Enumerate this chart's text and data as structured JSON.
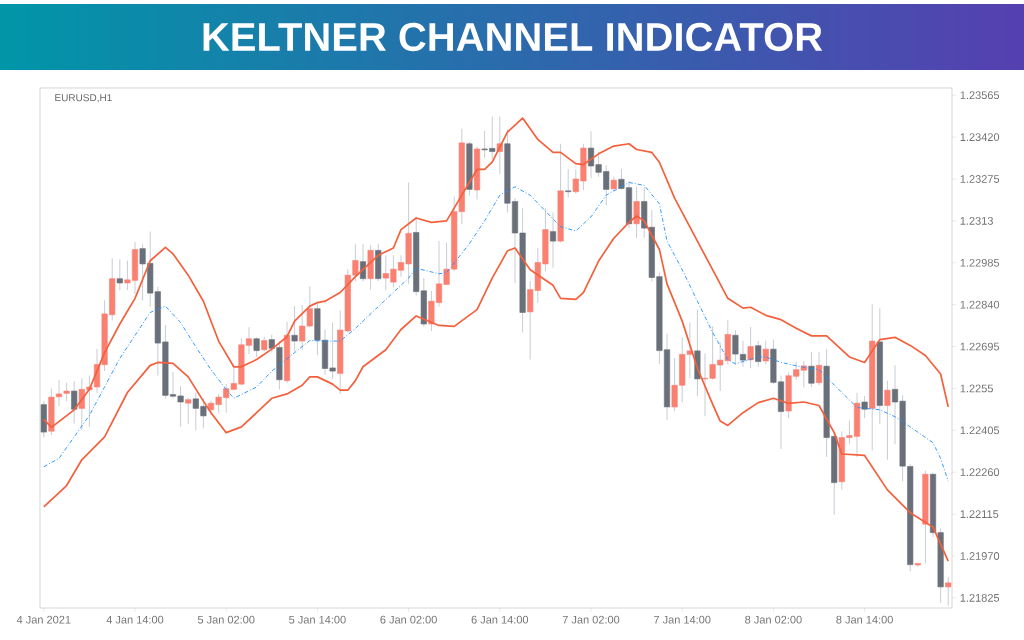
{
  "chart_data": {
    "type": "candlestick",
    "title": "KELTNER CHANNEL INDICATOR",
    "subtitle": "EURUSD,H1",
    "xlim": [
      "2021-01-04T01:30",
      "2021-01-09T01:30"
    ],
    "ylim": [
      1.2179,
      1.2359
    ],
    "xticks": [
      {
        "value": "2021-01-04T02:00",
        "label": "4 Jan 2021"
      },
      {
        "value": "2021-01-04T14:00",
        "label": "4 Jan 14:00"
      },
      {
        "value": "2021-01-05T02:00",
        "label": "5 Jan 02:00"
      },
      {
        "value": "2021-01-05T14:00",
        "label": "5 Jan 14:00"
      },
      {
        "value": "2021-01-06T02:00",
        "label": "6 Jan 02:00"
      },
      {
        "value": "2021-01-06T14:00",
        "label": "6 Jan 14:00"
      },
      {
        "value": "2021-01-07T02:00",
        "label": "7 Jan 02:00"
      },
      {
        "value": "2021-01-07T14:00",
        "label": "7 Jan 14:00"
      },
      {
        "value": "2021-01-08T02:00",
        "label": "8 Jan 02:00"
      },
      {
        "value": "2021-01-08T14:00",
        "label": "8 Jan 14:00"
      }
    ],
    "yticks": [
      1.21825,
      {
        "value": 1.2197,
        "label": "1.21970"
      },
      1.22115,
      {
        "value": 1.2226,
        "label": "1.22260"
      },
      1.22405,
      1.2255,
      1.22695,
      {
        "value": 1.2284,
        "label": "1.22840"
      },
      1.22985,
      1.2313,
      1.23275,
      {
        "value": 1.2342,
        "label": "1.23420"
      },
      1.23565
    ],
    "x": [
      "2021-01-04T02:00",
      "2021-01-04T03:00",
      "2021-01-04T04:00",
      "2021-01-04T05:00",
      "2021-01-04T06:00",
      "2021-01-04T07:00",
      "2021-01-04T08:00",
      "2021-01-04T09:00",
      "2021-01-04T10:00",
      "2021-01-04T11:00",
      "2021-01-04T12:00",
      "2021-01-04T13:00",
      "2021-01-04T14:00",
      "2021-01-04T15:00",
      "2021-01-04T16:00",
      "2021-01-04T17:00",
      "2021-01-04T18:00",
      "2021-01-04T19:00",
      "2021-01-04T20:00",
      "2021-01-04T21:00",
      "2021-01-04T22:00",
      "2021-01-04T23:00",
      "2021-01-05T00:00",
      "2021-01-05T01:00",
      "2021-01-05T02:00",
      "2021-01-05T03:00",
      "2021-01-05T04:00",
      "2021-01-05T05:00",
      "2021-01-05T06:00",
      "2021-01-05T07:00",
      "2021-01-05T08:00",
      "2021-01-05T09:00",
      "2021-01-05T10:00",
      "2021-01-05T11:00",
      "2021-01-05T12:00",
      "2021-01-05T13:00",
      "2021-01-05T14:00",
      "2021-01-05T15:00",
      "2021-01-05T16:00",
      "2021-01-05T17:00",
      "2021-01-05T18:00",
      "2021-01-05T19:00",
      "2021-01-05T20:00",
      "2021-01-05T21:00",
      "2021-01-05T22:00",
      "2021-01-05T23:00",
      "2021-01-06T00:00",
      "2021-01-06T01:00",
      "2021-01-06T02:00",
      "2021-01-06T03:00",
      "2021-01-06T04:00",
      "2021-01-06T05:00",
      "2021-01-06T06:00",
      "2021-01-06T07:00",
      "2021-01-06T08:00",
      "2021-01-06T09:00",
      "2021-01-06T10:00",
      "2021-01-06T11:00",
      "2021-01-06T12:00",
      "2021-01-06T13:00",
      "2021-01-06T14:00",
      "2021-01-06T15:00",
      "2021-01-06T16:00",
      "2021-01-06T17:00",
      "2021-01-06T18:00",
      "2021-01-06T19:00",
      "2021-01-06T20:00",
      "2021-01-06T21:00",
      "2021-01-06T22:00",
      "2021-01-06T23:00",
      "2021-01-07T00:00",
      "2021-01-07T01:00",
      "2021-01-07T02:00",
      "2021-01-07T03:00",
      "2021-01-07T04:00",
      "2021-01-07T05:00",
      "2021-01-07T06:00",
      "2021-01-07T07:00",
      "2021-01-07T08:00",
      "2021-01-07T09:00",
      "2021-01-07T10:00",
      "2021-01-07T11:00",
      "2021-01-07T12:00",
      "2021-01-07T13:00",
      "2021-01-07T14:00",
      "2021-01-07T15:00",
      "2021-01-07T16:00",
      "2021-01-07T17:00",
      "2021-01-07T18:00",
      "2021-01-07T19:00",
      "2021-01-07T20:00",
      "2021-01-07T21:00",
      "2021-01-07T22:00",
      "2021-01-07T23:00",
      "2021-01-08T00:00",
      "2021-01-08T01:00",
      "2021-01-08T02:00",
      "2021-01-08T03:00",
      "2021-01-08T04:00",
      "2021-01-08T05:00",
      "2021-01-08T06:00",
      "2021-01-08T07:00",
      "2021-01-08T08:00",
      "2021-01-08T09:00",
      "2021-01-08T10:00",
      "2021-01-08T11:00",
      "2021-01-08T12:00",
      "2021-01-08T13:00",
      "2021-01-08T14:00",
      "2021-01-08T15:00",
      "2021-01-08T16:00",
      "2021-01-08T17:00",
      "2021-01-08T18:00",
      "2021-01-08T19:00",
      "2021-01-08T20:00",
      "2021-01-08T21:00",
      "2021-01-08T22:00",
      "2021-01-08T23:00",
      "2021-01-09T00:00",
      "2021-01-09T01:00"
    ],
    "ohlc": [
      [
        1.22494,
        1.22506,
        1.2238,
        1.22399
      ],
      [
        1.22402,
        1.2255,
        1.22389,
        1.2252
      ],
      [
        1.22521,
        1.22578,
        1.22488,
        1.22531
      ],
      [
        1.22533,
        1.2257,
        1.22506,
        1.22541
      ],
      [
        1.22541,
        1.22575,
        1.22429,
        1.22478
      ],
      [
        1.22481,
        1.22585,
        1.22407,
        1.22547
      ],
      [
        1.22545,
        1.22595,
        1.22417,
        1.22555
      ],
      [
        1.22555,
        1.22687,
        1.22534,
        1.22633
      ],
      [
        1.22632,
        1.22855,
        1.2261,
        1.22808
      ],
      [
        1.22805,
        1.23001,
        1.22785,
        1.2293
      ],
      [
        1.2293,
        1.22996,
        1.2289,
        1.22915
      ],
      [
        1.22915,
        1.22993,
        1.2289,
        1.22926
      ],
      [
        1.22924,
        1.23057,
        1.22877,
        1.23031
      ],
      [
        1.23034,
        1.23049,
        1.22855,
        1.22981
      ],
      [
        1.22983,
        1.23093,
        1.22833,
        1.2288
      ],
      [
        1.22885,
        1.22902,
        1.22595,
        1.22707
      ],
      [
        1.22711,
        1.2277,
        1.22516,
        1.22526
      ],
      [
        1.22529,
        1.22607,
        1.22516,
        1.22523
      ],
      [
        1.22524,
        1.22558,
        1.22417,
        1.22503
      ],
      [
        1.22499,
        1.22517,
        1.22427,
        1.22511
      ],
      [
        1.22514,
        1.22536,
        1.22405,
        1.22481
      ],
      [
        1.22488,
        1.22516,
        1.22412,
        1.22455
      ],
      [
        1.22476,
        1.22508,
        1.22457,
        1.22499
      ],
      [
        1.22494,
        1.22531,
        1.22466,
        1.2252
      ],
      [
        1.22518,
        1.22565,
        1.22466,
        1.22549
      ],
      [
        1.22547,
        1.22625,
        1.22544,
        1.22567
      ],
      [
        1.22565,
        1.22724,
        1.22561,
        1.22701
      ],
      [
        1.22699,
        1.22763,
        1.22669,
        1.22722
      ],
      [
        1.22722,
        1.22726,
        1.22659,
        1.22681
      ],
      [
        1.22684,
        1.22729,
        1.22679,
        1.22716
      ],
      [
        1.22719,
        1.22736,
        1.22674,
        1.22689
      ],
      [
        1.22692,
        1.22714,
        1.22546,
        1.2258
      ],
      [
        1.22577,
        1.22781,
        1.2257,
        1.22734
      ],
      [
        1.22734,
        1.22835,
        1.22679,
        1.22714
      ],
      [
        1.22714,
        1.22838,
        1.22684,
        1.22766
      ],
      [
        1.22766,
        1.22904,
        1.22761,
        1.22826
      ],
      [
        1.22826,
        1.22843,
        1.22665,
        1.22717
      ],
      [
        1.22717,
        1.22754,
        1.22597,
        1.22619
      ],
      [
        1.22621,
        1.22778,
        1.22583,
        1.2261
      ],
      [
        1.22602,
        1.2282,
        1.22531,
        1.22752
      ],
      [
        1.22749,
        1.22963,
        1.22744,
        1.22942
      ],
      [
        1.22942,
        1.23049,
        1.2292,
        1.22993
      ],
      [
        1.22989,
        1.23049,
        1.2292,
        1.2293
      ],
      [
        1.2293,
        1.23046,
        1.22892,
        1.23028
      ],
      [
        1.23028,
        1.23051,
        1.22922,
        1.2293
      ],
      [
        1.22932,
        1.23011,
        1.2289,
        1.22948
      ],
      [
        1.22918,
        1.23011,
        1.229,
        1.22963
      ],
      [
        1.22959,
        1.23011,
        1.22937,
        1.22986
      ],
      [
        1.22981,
        1.23263,
        1.22912,
        1.23087
      ],
      [
        1.2309,
        1.23144,
        1.22872,
        1.22885
      ],
      [
        1.22888,
        1.22932,
        1.22763,
        1.22773
      ],
      [
        1.22773,
        1.22887,
        1.22749,
        1.22852
      ],
      [
        1.22847,
        1.2306,
        1.22833,
        1.22912
      ],
      [
        1.2291,
        1.23055,
        1.22907,
        1.22963
      ],
      [
        1.22963,
        1.23214,
        1.22956,
        1.23162
      ],
      [
        1.23162,
        1.23449,
        1.23118,
        1.234
      ],
      [
        1.23397,
        1.23404,
        1.23217,
        1.23239
      ],
      [
        1.23237,
        1.23387,
        1.23204,
        1.23379
      ],
      [
        1.23379,
        1.23441,
        1.23348,
        1.23376
      ],
      [
        1.23381,
        1.23491,
        1.23343,
        1.2337
      ],
      [
        1.2337,
        1.23491,
        1.23293,
        1.23397
      ],
      [
        1.23397,
        1.23446,
        1.23159,
        1.23191
      ],
      [
        1.23197,
        1.23209,
        1.22914,
        1.23088
      ],
      [
        1.23088,
        1.23174,
        1.22744,
        1.22813
      ],
      [
        1.22815,
        1.22922,
        1.2265,
        1.22892
      ],
      [
        1.22889,
        1.23036,
        1.22847,
        1.22986
      ],
      [
        1.22981,
        1.23174,
        1.22956,
        1.231
      ],
      [
        1.23093,
        1.23159,
        1.22968,
        1.2306
      ],
      [
        1.2306,
        1.23397,
        1.23055,
        1.23234
      ],
      [
        1.23234,
        1.2331,
        1.23211,
        1.23231
      ],
      [
        1.23231,
        1.23308,
        1.23224,
        1.23275
      ],
      [
        1.23268,
        1.23397,
        1.23237,
        1.23382
      ],
      [
        1.23382,
        1.23441,
        1.23278,
        1.2332
      ],
      [
        1.23325,
        1.23369,
        1.23283,
        1.23298
      ],
      [
        1.23301,
        1.23323,
        1.23184,
        1.23239
      ],
      [
        1.23241,
        1.23283,
        1.23234,
        1.23271
      ],
      [
        1.23274,
        1.2331,
        1.23239,
        1.23242
      ],
      [
        1.23245,
        1.23268,
        1.23105,
        1.2312
      ],
      [
        1.2312,
        1.23248,
        1.2307,
        1.23197
      ],
      [
        1.23197,
        1.23247,
        1.23072,
        1.23105
      ],
      [
        1.23108,
        1.23167,
        1.2292,
        1.22934
      ],
      [
        1.22937,
        1.22951,
        1.22635,
        1.22681
      ],
      [
        1.22684,
        1.22739,
        1.22442,
        1.22486
      ],
      [
        1.22486,
        1.22656,
        1.22471,
        1.22561
      ],
      [
        1.22561,
        1.22727,
        1.22501,
        1.22668
      ],
      [
        1.22668,
        1.22778,
        1.22585,
        1.2268
      ],
      [
        1.2268,
        1.22823,
        1.22524,
        1.22583
      ],
      [
        1.22583,
        1.22672,
        1.22455,
        1.22585
      ],
      [
        1.22585,
        1.22765,
        1.2258,
        1.22633
      ],
      [
        1.22631,
        1.22709,
        1.22541,
        1.22648
      ],
      [
        1.22646,
        1.22786,
        1.22633,
        1.22737
      ],
      [
        1.22734,
        1.22752,
        1.22633,
        1.22669
      ],
      [
        1.22668,
        1.22714,
        1.22625,
        1.22648
      ],
      [
        1.22649,
        1.22763,
        1.2262,
        1.22695
      ],
      [
        1.22698,
        1.22714,
        1.22625,
        1.22643
      ],
      [
        1.22645,
        1.22716,
        1.22633,
        1.22686
      ],
      [
        1.22686,
        1.22719,
        1.22565,
        1.22571
      ],
      [
        1.22573,
        1.22595,
        1.2234,
        1.2247
      ],
      [
        1.22472,
        1.22605,
        1.22447,
        1.22594
      ],
      [
        1.22592,
        1.22642,
        1.2258,
        1.22615
      ],
      [
        1.22613,
        1.22645,
        1.22553,
        1.22628
      ],
      [
        1.22627,
        1.22677,
        1.22555,
        1.22568
      ],
      [
        1.2257,
        1.22677,
        1.22561,
        1.2263
      ],
      [
        1.22627,
        1.22686,
        1.22313,
        1.2238
      ],
      [
        1.22384,
        1.22398,
        1.22113,
        1.22224
      ],
      [
        1.22227,
        1.22402,
        1.22199,
        1.2238
      ],
      [
        1.2238,
        1.22439,
        1.22357,
        1.22387
      ],
      [
        1.22384,
        1.22534,
        1.22313,
        1.22499
      ],
      [
        1.22503,
        1.22524,
        1.22447,
        1.22478
      ],
      [
        1.22481,
        1.22841,
        1.22335,
        1.22714
      ],
      [
        1.22711,
        1.22828,
        1.22427,
        1.22491
      ],
      [
        1.22491,
        1.22577,
        1.22303,
        1.22544
      ],
      [
        1.22547,
        1.2263,
        1.22357,
        1.22503
      ],
      [
        1.22506,
        1.22526,
        1.22229,
        1.22281
      ],
      [
        1.2228,
        1.22288,
        1.21917,
        1.2194
      ],
      [
        1.21939,
        1.21947,
        1.21932,
        1.21944
      ],
      [
        1.2208,
        1.22265,
        1.21944,
        1.22253
      ],
      [
        1.22253,
        1.22258,
        1.22036,
        1.22051
      ],
      [
        1.22051,
        1.22066,
        1.21808,
        1.21863
      ],
      [
        1.21863,
        1.21897,
        1.21798,
        1.21877
      ]
    ],
    "colors": [
      "#6a707a",
      "#fa8072",
      "#fa8072",
      "#fa8072",
      "#6a707a",
      "#fa8072",
      "#fa8072",
      "#fa8072",
      "#fa8072",
      "#fa8072",
      "#6a707a",
      "#fa8072",
      "#fa8072",
      "#6a707a",
      "#6a707a",
      "#6a707a",
      "#6a707a",
      "#6a707a",
      "#6a707a",
      "#fa8072",
      "#6a707a",
      "#6a707a",
      "#fa8072",
      "#fa8072",
      "#fa8072",
      "#fa8072",
      "#fa8072",
      "#fa8072",
      "#6a707a",
      "#fa8072",
      "#6a707a",
      "#6a707a",
      "#fa8072",
      "#6a707a",
      "#fa8072",
      "#fa8072",
      "#6a707a",
      "#6a707a",
      "#6a707a",
      "#fa8072",
      "#fa8072",
      "#fa8072",
      "#6a707a",
      "#fa8072",
      "#6a707a",
      "#fa8072",
      "#fa8072",
      "#fa8072",
      "#fa8072",
      "#6a707a",
      "#6a707a",
      "#fa8072",
      "#fa8072",
      "#fa8072",
      "#fa8072",
      "#fa8072",
      "#6a707a",
      "#fa8072",
      "#6a707a",
      "#6a707a",
      "#fa8072",
      "#6a707a",
      "#6a707a",
      "#6a707a",
      "#fa8072",
      "#fa8072",
      "#fa8072",
      "#6a707a",
      "#fa8072",
      "#6a707a",
      "#fa8072",
      "#fa8072",
      "#6a707a",
      "#6a707a",
      "#6a707a",
      "#fa8072",
      "#6a707a",
      "#6a707a",
      "#fa8072",
      "#6a707a",
      "#6a707a",
      "#6a707a",
      "#6a707a",
      "#fa8072",
      "#fa8072",
      "#fa8072",
      "#6a707a",
      "#fa8072",
      "#fa8072",
      "#fa8072",
      "#fa8072",
      "#6a707a",
      "#6a707a",
      "#fa8072",
      "#6a707a",
      "#fa8072",
      "#6a707a",
      "#6a707a",
      "#fa8072",
      "#fa8072",
      "#fa8072",
      "#6a707a",
      "#fa8072",
      "#6a707a",
      "#6a707a",
      "#fa8072",
      "#fa8072",
      "#fa8072",
      "#6a707a",
      "#fa8072",
      "#6a707a",
      "#fa8072",
      "#6a707a",
      "#6a707a",
      "#6a707a",
      "#fa8072",
      "#fa8072",
      "#6a707a",
      "#6a707a",
      "#fa8072"
    ],
    "series": [
      {
        "type": "line",
        "color": "#f4603c",
        "line_style": "solid",
        "x": [
          "2021-01-04T02:00",
          "2021-01-04T03:00",
          "2021-01-04T06:00",
          "2021-01-04T08:00",
          "2021-01-04T10:00",
          "2021-01-04T12:00",
          "2021-01-04T14:00",
          "2021-01-04T16:00",
          "2021-01-04T18:00",
          "2021-01-04T19:00",
          "2021-01-04T21:00",
          "2021-01-04T23:00",
          "2021-01-05T01:00",
          "2021-01-05T03:00",
          "2021-01-05T04:00",
          "2021-01-05T06:00",
          "2021-01-05T08:00",
          "2021-01-05T10:00",
          "2021-01-05T11:00",
          "2021-01-05T13:00",
          "2021-01-05T14:00",
          "2021-01-05T15:00",
          "2021-01-05T17:00",
          "2021-01-05T19:00",
          "2021-01-05T22:00",
          "2021-01-06T00:00",
          "2021-01-06T01:00",
          "2021-01-06T03:00",
          "2021-01-06T05:00",
          "2021-01-06T07:00",
          "2021-01-06T09:00",
          "2021-01-06T11:00",
          "2021-01-06T12:00",
          "2021-01-06T13:00",
          "2021-01-06T15:00",
          "2021-01-06T17:00",
          "2021-01-06T19:00",
          "2021-01-06T21:00",
          "2021-01-06T22:00",
          "2021-01-07T00:00",
          "2021-01-07T01:00",
          "2021-01-07T03:00",
          "2021-01-07T05:00",
          "2021-01-07T07:00",
          "2021-01-07T08:00",
          "2021-01-07T10:00",
          "2021-01-07T11:00",
          "2021-01-07T13:00",
          "2021-01-07T16:00",
          "2021-01-07T18:00",
          "2021-01-07T20:00",
          "2021-01-07T22:00",
          "2021-01-07T23:00",
          "2021-01-08T01:00",
          "2021-01-08T03:00",
          "2021-01-08T05:00",
          "2021-01-08T07:00",
          "2021-01-08T09:00",
          "2021-01-08T12:00",
          "2021-01-08T14:00",
          "2021-01-08T16:00",
          "2021-01-08T18:00",
          "2021-01-08T20:00",
          "2021-01-08T22:00",
          "2021-01-09T00:00",
          "2021-01-09T01:00"
        ],
        "values": [
          1.22443,
          1.22415,
          1.22476,
          1.22547,
          1.22674,
          1.22773,
          1.22862,
          1.22992,
          1.23038,
          1.23016,
          1.22942,
          1.22852,
          1.22714,
          1.22625,
          1.22625,
          1.2265,
          1.22686,
          1.22729,
          1.22783,
          1.22835,
          1.22847,
          1.22852,
          1.22882,
          1.22937,
          1.23011,
          1.23036,
          1.231,
          1.2314,
          1.23125,
          1.2313,
          1.23219,
          1.23308,
          1.23308,
          1.23333,
          1.23437,
          1.23486,
          1.23412,
          1.23367,
          1.23367,
          1.23328,
          1.23325,
          1.23362,
          1.23389,
          1.23397,
          1.23377,
          1.23367,
          1.23333,
          1.23209,
          1.2306,
          1.22961,
          1.22862,
          1.22828,
          1.22831,
          1.22803,
          1.22788,
          1.22758,
          1.22732,
          1.22732,
          1.22659,
          1.2264,
          1.22719,
          1.22727,
          1.22699,
          1.22664,
          1.226,
          1.22486
        ]
      },
      {
        "type": "line",
        "color": "#1e90ff",
        "line_style": "dashed",
        "x": [
          "2021-01-04T02:00",
          "2021-01-04T04:00",
          "2021-01-04T08:00",
          "2021-01-04T12:00",
          "2021-01-04T16:00",
          "2021-01-04T18:00",
          "2021-01-04T20:00",
          "2021-01-04T22:00",
          "2021-01-05T00:00",
          "2021-01-05T02:00",
          "2021-01-05T03:00",
          "2021-01-05T06:00",
          "2021-01-05T08:00",
          "2021-01-05T11:00",
          "2021-01-05T13:00",
          "2021-01-05T15:00",
          "2021-01-05T17:00",
          "2021-01-05T19:00",
          "2021-01-05T22:00",
          "2021-01-06T02:00",
          "2021-01-06T03:00",
          "2021-01-06T06:00",
          "2021-01-06T07:00",
          "2021-01-06T10:00",
          "2021-01-06T12:00",
          "2021-01-06T14:00",
          "2021-01-06T16:00",
          "2021-01-06T18:00",
          "2021-01-06T20:00",
          "2021-01-06T22:00",
          "2021-01-07T00:00",
          "2021-01-07T02:00",
          "2021-01-07T04:00",
          "2021-01-07T07:00",
          "2021-01-07T09:00",
          "2021-01-07T11:00",
          "2021-01-07T12:00",
          "2021-01-07T14:00",
          "2021-01-07T16:00",
          "2021-01-07T18:00",
          "2021-01-07T20:00",
          "2021-01-07T21:00",
          "2021-01-08T00:00",
          "2021-01-08T01:00",
          "2021-01-08T03:00",
          "2021-01-08T06:00",
          "2021-01-08T08:00",
          "2021-01-08T11:00",
          "2021-01-08T13:00",
          "2021-01-08T16:00",
          "2021-01-08T18:00",
          "2021-01-08T20:00",
          "2021-01-08T23:00",
          "2021-01-09T00:00",
          "2021-01-09T01:00"
        ],
        "values": [
          1.22279,
          1.22308,
          1.22457,
          1.22654,
          1.22813,
          1.22835,
          1.22778,
          1.22694,
          1.22615,
          1.22546,
          1.22516,
          1.22555,
          1.2261,
          1.22674,
          1.22716,
          1.22714,
          1.22714,
          1.22758,
          1.22833,
          1.22932,
          1.22966,
          1.22947,
          1.22951,
          1.23051,
          1.2313,
          1.23219,
          1.23248,
          1.23219,
          1.23164,
          1.2311,
          1.23095,
          1.23144,
          1.23219,
          1.23263,
          1.23253,
          1.23189,
          1.2306,
          1.22961,
          1.22852,
          1.22744,
          1.2265,
          1.22635,
          1.22659,
          1.22659,
          1.2264,
          1.22623,
          1.22615,
          1.22536,
          1.22484,
          1.22476,
          1.22452,
          1.22417,
          1.22362,
          1.22308,
          1.22229
        ]
      },
      {
        "type": "line",
        "color": "#f4603c",
        "line_style": "solid",
        "x": [
          "2021-01-04T02:00",
          "2021-01-04T05:00",
          "2021-01-04T07:00",
          "2021-01-04T10:00",
          "2021-01-04T13:00",
          "2021-01-04T16:00",
          "2021-01-04T17:00",
          "2021-01-04T19:00",
          "2021-01-04T21:00",
          "2021-01-04T23:00",
          "2021-01-05T00:00",
          "2021-01-05T02:00",
          "2021-01-05T04:00",
          "2021-01-05T06:00",
          "2021-01-05T08:00",
          "2021-01-05T10:00",
          "2021-01-05T12:00",
          "2021-01-05T13:00",
          "2021-01-05T14:00",
          "2021-01-05T16:00",
          "2021-01-05T17:00",
          "2021-01-05T18:00",
          "2021-01-05T19:00",
          "2021-01-05T20:00",
          "2021-01-05T23:00",
          "2021-01-06T01:00",
          "2021-01-06T03:00",
          "2021-01-06T06:00",
          "2021-01-06T08:00",
          "2021-01-06T11:00",
          "2021-01-06T13:00",
          "2021-01-06T15:00",
          "2021-01-06T16:00",
          "2021-01-06T18:00",
          "2021-01-06T21:00",
          "2021-01-06T22:00",
          "2021-01-07T00:00",
          "2021-01-07T01:00",
          "2021-01-07T03:00",
          "2021-01-07T05:00",
          "2021-01-07T07:00",
          "2021-01-07T08:00",
          "2021-01-07T09:00",
          "2021-01-07T11:00",
          "2021-01-07T12:00",
          "2021-01-07T14:00",
          "2021-01-07T16:00",
          "2021-01-07T18:00",
          "2021-01-07T19:00",
          "2021-01-07T20:00",
          "2021-01-07T22:00",
          "2021-01-08T00:00",
          "2021-01-08T02:00",
          "2021-01-08T04:00",
          "2021-01-08T06:00",
          "2021-01-08T08:00",
          "2021-01-08T10:00",
          "2021-01-08T11:00",
          "2021-01-08T14:00",
          "2021-01-08T17:00",
          "2021-01-08T20:00",
          "2021-01-08T23:00",
          "2021-01-09T01:00"
        ],
        "values": [
          1.2214,
          1.22214,
          1.22303,
          1.22382,
          1.22536,
          1.2263,
          1.2264,
          1.22637,
          1.2259,
          1.22506,
          1.22466,
          1.22397,
          1.22417,
          1.22466,
          1.22516,
          1.22531,
          1.22561,
          1.2259,
          1.2259,
          1.22565,
          1.22544,
          1.22544,
          1.22577,
          1.22625,
          1.22684,
          1.22754,
          1.22801,
          1.22768,
          1.22765,
          1.22823,
          1.22932,
          1.23026,
          1.23036,
          1.22961,
          1.22907,
          1.22862,
          1.22858,
          1.22882,
          1.22991,
          1.2307,
          1.23125,
          1.23147,
          1.2313,
          1.23031,
          1.22912,
          1.22783,
          1.2262,
          1.22496,
          1.22437,
          1.22422,
          1.22466,
          1.22501,
          1.22516,
          1.22498,
          1.22503,
          1.22491,
          1.22397,
          1.22323,
          1.22318,
          1.22199,
          1.2212,
          1.2207,
          1.21952
        ]
      }
    ]
  }
}
